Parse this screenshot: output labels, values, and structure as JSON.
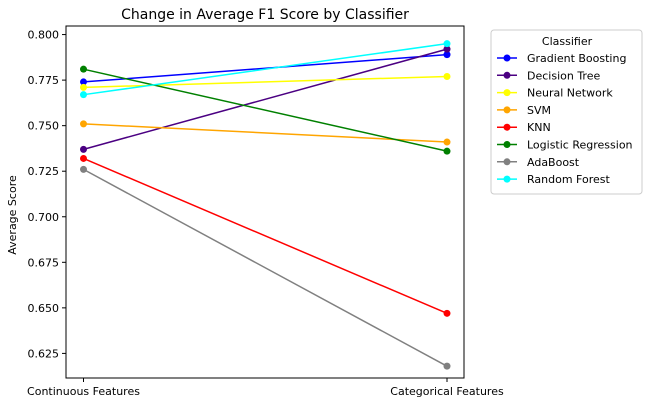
{
  "chart_data": {
    "type": "line",
    "title": "Change in Average F1 Score by Classifier",
    "xlabel": "",
    "ylabel": "Average Score",
    "categories": [
      "Continuous Features",
      "Categorical Features"
    ],
    "ylim": [
      0.6115,
      0.8047
    ],
    "yticks": [
      0.625,
      0.65,
      0.675,
      0.7,
      0.725,
      0.75,
      0.775,
      0.8
    ],
    "grid": false,
    "legend": {
      "title": "Classifier",
      "placement": "outside-top-right"
    },
    "series": [
      {
        "name": "Gradient Boosting",
        "color": "#0000ff",
        "values": [
          0.774,
          0.789
        ]
      },
      {
        "name": "Decision Tree",
        "color": "#4b0082",
        "values": [
          0.737,
          0.792
        ]
      },
      {
        "name": "Neural Network",
        "color": "#ffff00",
        "values": [
          0.771,
          0.777
        ]
      },
      {
        "name": "SVM",
        "color": "#ffa500",
        "values": [
          0.751,
          0.741
        ]
      },
      {
        "name": "KNN",
        "color": "#ff0000",
        "values": [
          0.732,
          0.647
        ]
      },
      {
        "name": "Logistic Regression",
        "color": "#008000",
        "values": [
          0.781,
          0.736
        ]
      },
      {
        "name": "AdaBoost",
        "color": "#808080",
        "values": [
          0.726,
          0.618
        ]
      },
      {
        "name": "Random Forest",
        "color": "#00ffff",
        "values": [
          0.767,
          0.795
        ]
      }
    ]
  }
}
